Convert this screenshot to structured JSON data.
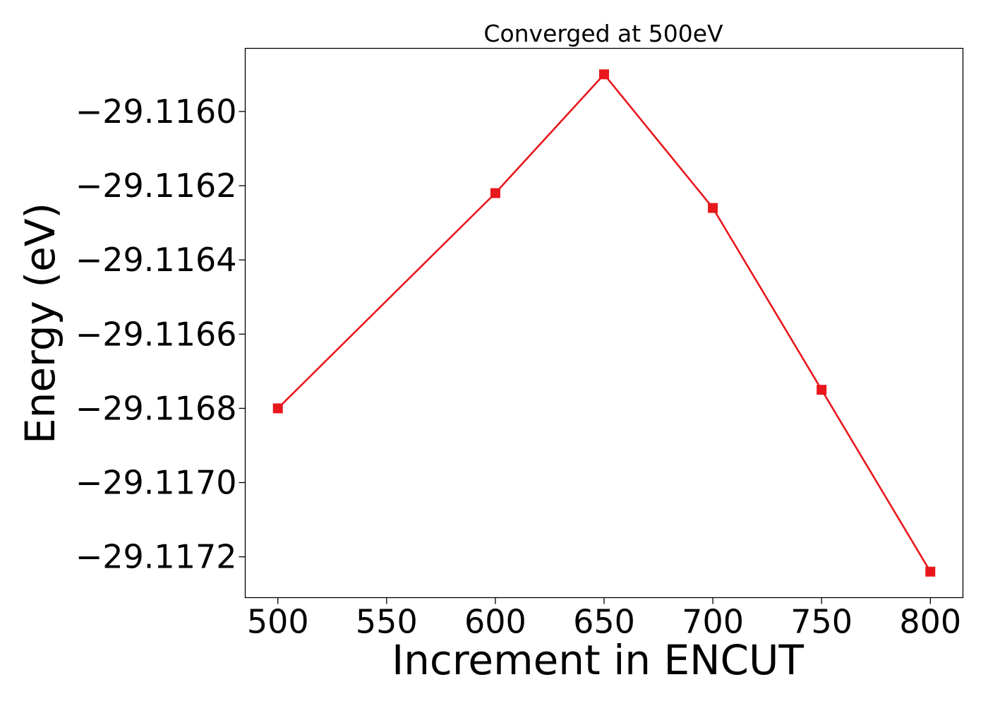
{
  "chart_data": {
    "type": "line",
    "title": "Converged at 500eV",
    "xlabel": "Increment in ENCUT",
    "ylabel": "Energy (eV)",
    "x": [
      500,
      600,
      650,
      700,
      750,
      800
    ],
    "series": [
      {
        "values": [
          -29.1168,
          -29.11622,
          -29.1159,
          -29.11626,
          -29.11675,
          -29.11724
        ]
      }
    ],
    "xlim": [
      485,
      815
    ],
    "ylim": [
      -29.11731,
      -29.11583
    ],
    "xticks": [
      500,
      550,
      600,
      650,
      700,
      750,
      800
    ],
    "xtick_labels": [
      "500",
      "550",
      "600",
      "650",
      "700",
      "750",
      "800"
    ],
    "yticks": [
      -29.116,
      -29.1162,
      -29.1164,
      -29.1166,
      -29.1168,
      -29.117,
      -29.1172
    ],
    "ytick_labels": [
      "−29.1160",
      "−29.1162",
      "−29.1164",
      "−29.1166",
      "−29.1168",
      "−29.1170",
      "−29.1172"
    ],
    "marker": "square",
    "color": "#e8171c",
    "grid": false,
    "legend": false
  }
}
